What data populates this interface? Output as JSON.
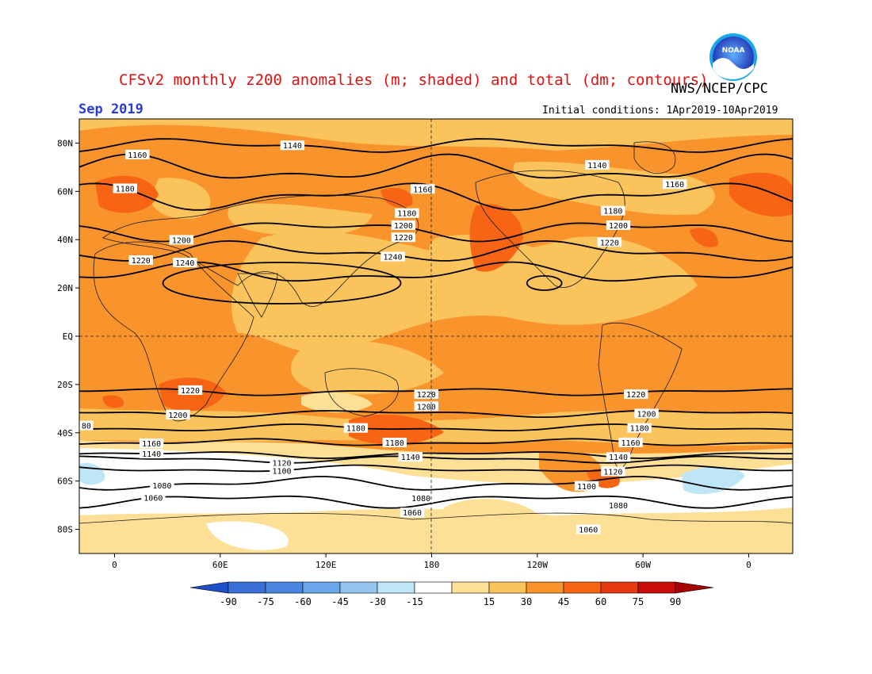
{
  "header": {
    "title": "CFSv2 monthly z200 anomalies (m; shaded) and total (dm; contours)",
    "agency": "NWS/NCEP/CPC",
    "month": "Sep 2019",
    "initial_conditions": "Initial conditions: 1Apr2019-10Apr2019",
    "logo_text": "NOAA"
  },
  "axes": {
    "lat_labels": [
      "80N",
      "60N",
      "40N",
      "20N",
      "EQ",
      "20S",
      "40S",
      "60S",
      "80S"
    ],
    "lat_values": [
      80,
      60,
      40,
      20,
      0,
      -20,
      -40,
      -60,
      -80
    ],
    "lon_labels": [
      "0",
      "60E",
      "120E",
      "180",
      "120W",
      "60W",
      "0"
    ],
    "lon_values": [
      0,
      60,
      120,
      180,
      240,
      300,
      360
    ],
    "lon_range": [
      -20,
      385
    ],
    "lat_range": [
      -90,
      90
    ]
  },
  "colorbar": {
    "labels": [
      "-90",
      "-75",
      "-60",
      "-45",
      "-30",
      "-15",
      "15",
      "30",
      "45",
      "60",
      "75",
      "90"
    ],
    "bins": [
      {
        "color": "#3a6fd8"
      },
      {
        "color": "#4a86e0"
      },
      {
        "color": "#6aa6ea"
      },
      {
        "color": "#94c6f0"
      },
      {
        "color": "#bfe6f6"
      },
      {
        "color": "#ffffff"
      },
      {
        "color": "#fde096"
      },
      {
        "color": "#fbc35c"
      },
      {
        "color": "#f9942c"
      },
      {
        "color": "#f76414"
      },
      {
        "color": "#e83a10"
      },
      {
        "color": "#c80c08"
      }
    ],
    "low_arrow_color": "#1c4fc8",
    "high_arrow_color": "#a80404"
  },
  "contours": [
    {
      "label": "1140",
      "lat": 79,
      "label_lon": 101,
      "amp": 2
    },
    {
      "label": "1160",
      "lat": 69,
      "label_lon": 13,
      "amp": 4
    },
    {
      "label": "1180",
      "lat": 58,
      "label_lon": 6,
      "amp": 4
    },
    {
      "label": "1200",
      "lat": 44,
      "label_lon": 38,
      "amp": 3
    },
    {
      "label": "1220",
      "lat": 35,
      "label_lon": 15,
      "amp": 3
    },
    {
      "label": "1240",
      "lat": 26,
      "label_lon": 40,
      "amp": 3
    },
    {
      "label": "1220",
      "lat": -23,
      "label_lon": 43,
      "amp": 1
    },
    {
      "label": "1200",
      "lat": -32,
      "label_lon": 36,
      "amp": 1
    },
    {
      "label": "1180",
      "lat": -38,
      "label_lon": 137,
      "amp": 1
    },
    {
      "label": "1160",
      "lat": -44,
      "label_lon": 21,
      "amp": 1
    },
    {
      "label": "1140",
      "lat": -49,
      "label_lon": 21,
      "amp": 1
    },
    {
      "label": "1120",
      "lat": -51,
      "label_lon": 95,
      "amp": 1
    },
    {
      "label": "1100",
      "lat": -55,
      "label_lon": 95,
      "amp": 1
    },
    {
      "label": "1080",
      "lat": -61,
      "label_lon": 27,
      "amp": 2
    },
    {
      "label": "1060",
      "lat": -68,
      "label_lon": 22,
      "amp": 2
    }
  ],
  "extra_contour_labels": [
    {
      "label": "1140",
      "lat": 71,
      "lon": 274
    },
    {
      "label": "1160",
      "lat": 63,
      "lon": 318
    },
    {
      "label": "1160",
      "lat": 61,
      "lon": 175
    },
    {
      "label": "1180",
      "lat": 51,
      "lon": 166
    },
    {
      "label": "1180",
      "lat": 52,
      "lon": 283
    },
    {
      "label": "1200",
      "lat": 46,
      "lon": 164
    },
    {
      "label": "1200",
      "lat": 46,
      "lon": 286
    },
    {
      "label": "1220",
      "lat": 41,
      "lon": 164
    },
    {
      "label": "1220",
      "lat": 39,
      "lon": 281
    },
    {
      "label": "1240",
      "lat": 33,
      "lon": 158
    },
    {
      "label": "1220",
      "lat": -24,
      "lon": 177
    },
    {
      "label": "1200",
      "lat": -29,
      "lon": 177
    },
    {
      "label": "1180",
      "lat": -44,
      "lon": 159
    },
    {
      "label": "1140",
      "lat": -50,
      "lon": 168
    },
    {
      "label": "1220",
      "lat": -24,
      "lon": 296
    },
    {
      "label": "1200",
      "lat": -32,
      "lon": 302
    },
    {
      "label": "1180",
      "lat": -38,
      "lon": 298
    },
    {
      "label": "1160",
      "lat": -44,
      "lon": 293
    },
    {
      "label": "1140",
      "lat": -50,
      "lon": 286
    },
    {
      "label": "1120",
      "lat": -56,
      "lon": 283
    },
    {
      "label": "1100",
      "lat": -62,
      "lon": 268
    },
    {
      "label": "1080",
      "lat": -67,
      "lon": 174
    },
    {
      "label": "1060",
      "lat": -73,
      "lon": 169
    },
    {
      "label": "1080",
      "lat": -70,
      "lon": 286
    },
    {
      "label": "1060",
      "lat": -80,
      "lon": 269
    },
    {
      "label": "80",
      "lat": -37,
      "lon": -16
    }
  ]
}
